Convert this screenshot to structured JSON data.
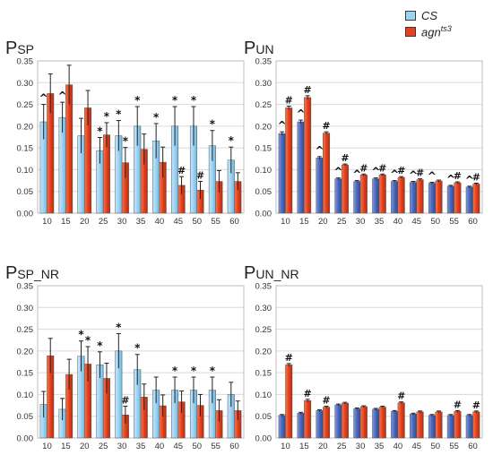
{
  "figure": {
    "legend": [
      {
        "label": "CS",
        "color": "#9dd3f2"
      },
      {
        "label": "agn",
        "sup": "ts3",
        "color": "#e8401c"
      }
    ]
  },
  "chart_data": [
    {
      "type": "bar",
      "title": "P",
      "title_sub": "SP",
      "categories": [
        "10",
        "15",
        "20",
        "25",
        "30",
        "35",
        "40",
        "45",
        "50",
        "55",
        "60"
      ],
      "ylim": [
        0,
        0.35
      ],
      "yticks": [
        "0.00",
        "0.05",
        "0.10",
        "0.15",
        "0.20",
        "0.25",
        "0.30",
        "0.35"
      ],
      "series": [
        {
          "name": "CS",
          "color": "#9dd3f2",
          "values": [
            0.21,
            0.22,
            0.178,
            0.144,
            0.178,
            0.2,
            0.166,
            0.2,
            0.2,
            0.155,
            0.122
          ],
          "errors": [
            0.04,
            0.035,
            0.04,
            0.03,
            0.035,
            0.045,
            0.04,
            0.045,
            0.045,
            0.035,
            0.03
          ],
          "marks": [
            "^",
            "^",
            "",
            "*",
            "*",
            "*",
            "*",
            "*",
            "*",
            "*",
            "*"
          ]
        },
        {
          "name": "agn ts3",
          "color": "#e8401c",
          "values": [
            0.275,
            0.295,
            0.242,
            0.18,
            0.116,
            0.147,
            0.117,
            0.064,
            0.053,
            0.073,
            0.073
          ],
          "errors": [
            0.045,
            0.045,
            0.04,
            0.028,
            0.035,
            0.035,
            0.035,
            0.02,
            0.02,
            0.025,
            0.02
          ],
          "marks": [
            "",
            "",
            "",
            "*",
            "*",
            "",
            "",
            "#",
            "#",
            "",
            ""
          ]
        }
      ]
    },
    {
      "type": "bar",
      "title": "P",
      "title_sub": "UN",
      "categories": [
        "10",
        "15",
        "20",
        "25",
        "30",
        "35",
        "40",
        "45",
        "50",
        "55",
        "60"
      ],
      "ylim": [
        0,
        0.35
      ],
      "yticks": [
        "0.00",
        "0.05",
        "0.10",
        "0.15",
        "0.20",
        "0.25",
        "0.30",
        "0.35"
      ],
      "series": [
        {
          "name": "CS",
          "color": "#4a67b8",
          "values": [
            0.183,
            0.21,
            0.127,
            0.079,
            0.073,
            0.079,
            0.073,
            0.071,
            0.069,
            0.062,
            0.06
          ],
          "errors": [
            0.004,
            0.004,
            0.003,
            0.002,
            0.002,
            0.002,
            0.002,
            0.002,
            0.002,
            0.002,
            0.002
          ],
          "marks": [
            "^",
            "^",
            "^",
            "^",
            "^",
            "^",
            "^",
            "^",
            "^",
            "^",
            "^"
          ]
        },
        {
          "name": "agn ts3",
          "color": "#e8401c",
          "values": [
            0.242,
            0.266,
            0.184,
            0.111,
            0.088,
            0.088,
            0.082,
            0.077,
            0.074,
            0.07,
            0.067
          ],
          "errors": [
            0.004,
            0.004,
            0.003,
            0.002,
            0.002,
            0.002,
            0.002,
            0.002,
            0.002,
            0.002,
            0.002
          ],
          "marks": [
            "#",
            "#",
            "#",
            "#",
            "#",
            "#",
            "#",
            "#",
            "",
            "#",
            "#"
          ]
        }
      ]
    },
    {
      "type": "bar",
      "title": "P",
      "title_sub": "SP_NR",
      "categories": [
        "10",
        "15",
        "20",
        "25",
        "30",
        "35",
        "40",
        "45",
        "50",
        "55",
        "60"
      ],
      "ylim": [
        0,
        0.35
      ],
      "yticks": [
        "0.00",
        "0.05",
        "0.10",
        "0.15",
        "0.20",
        "0.25",
        "0.30",
        "0.35"
      ],
      "series": [
        {
          "name": "CS",
          "color": "#9dd3f2",
          "values": [
            0.077,
            0.066,
            0.188,
            0.168,
            0.2,
            0.157,
            0.11,
            0.11,
            0.11,
            0.11,
            0.1
          ],
          "errors": [
            0.03,
            0.025,
            0.035,
            0.03,
            0.04,
            0.035,
            0.03,
            0.03,
            0.03,
            0.03,
            0.028
          ],
          "marks": [
            "",
            "",
            "*",
            "*",
            "*",
            "*",
            "",
            "*",
            "*",
            "*",
            ""
          ]
        },
        {
          "name": "agn ts3",
          "color": "#e8401c",
          "values": [
            0.189,
            0.146,
            0.17,
            0.137,
            0.053,
            0.094,
            0.074,
            0.083,
            0.075,
            0.063,
            0.063
          ],
          "errors": [
            0.04,
            0.035,
            0.04,
            0.035,
            0.02,
            0.03,
            0.025,
            0.025,
            0.025,
            0.025,
            0.022
          ],
          "marks": [
            "",
            "",
            "*",
            "",
            "#",
            "",
            "",
            "",
            "",
            "",
            ""
          ]
        }
      ]
    },
    {
      "type": "bar",
      "title": "P",
      "title_sub": "UN_NR",
      "categories": [
        "10",
        "15",
        "20",
        "25",
        "30",
        "35",
        "40",
        "45",
        "50",
        "55",
        "60"
      ],
      "ylim": [
        0,
        0.35
      ],
      "yticks": [
        "0.00",
        "0.05",
        "0.10",
        "0.15",
        "0.20",
        "0.25",
        "0.30",
        "0.35"
      ],
      "series": [
        {
          "name": "CS",
          "color": "#4a67b8",
          "values": [
            0.052,
            0.057,
            0.063,
            0.076,
            0.067,
            0.066,
            0.061,
            0.055,
            0.052,
            0.052,
            0.052
          ],
          "errors": [
            0.002,
            0.002,
            0.002,
            0.002,
            0.002,
            0.002,
            0.002,
            0.002,
            0.002,
            0.002,
            0.002
          ],
          "marks": [
            "",
            "",
            "",
            "",
            "",
            "",
            "",
            "",
            "",
            "",
            ""
          ]
        },
        {
          "name": "agn ts3",
          "color": "#e8401c",
          "values": [
            0.168,
            0.086,
            0.071,
            0.08,
            0.072,
            0.071,
            0.081,
            0.06,
            0.06,
            0.061,
            0.06
          ],
          "errors": [
            0.003,
            0.003,
            0.002,
            0.002,
            0.002,
            0.002,
            0.002,
            0.002,
            0.002,
            0.002,
            0.002
          ],
          "marks": [
            "#",
            "#",
            "#",
            "",
            "",
            "",
            "#",
            "",
            "",
            "#",
            "#"
          ]
        }
      ]
    }
  ]
}
